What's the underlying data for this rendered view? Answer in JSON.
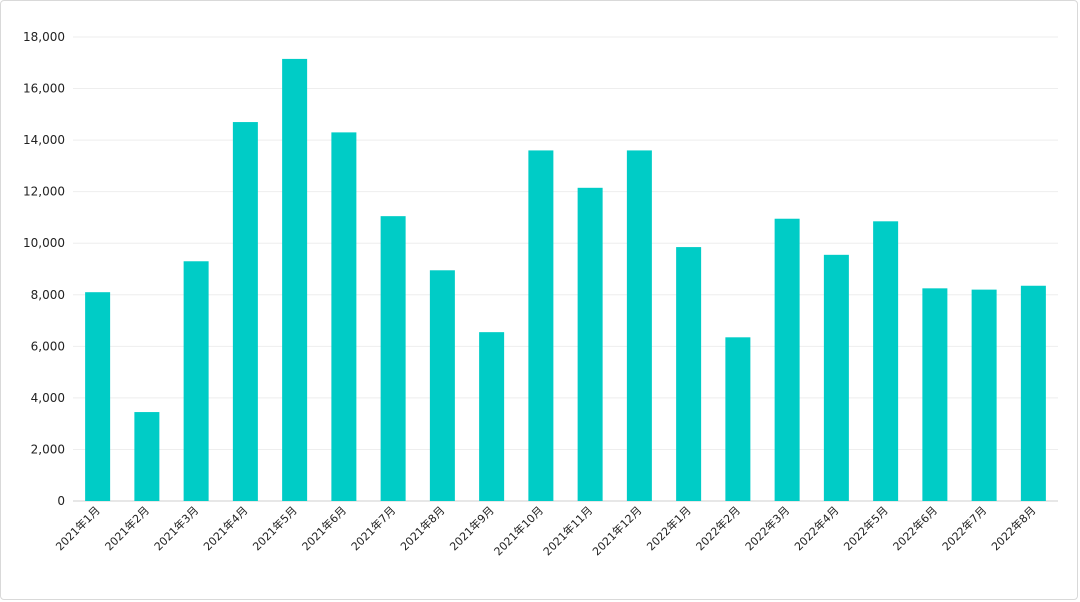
{
  "chart_data": {
    "type": "bar",
    "title": "",
    "xlabel": "",
    "ylabel": "",
    "ylim": [
      0,
      18000
    ],
    "yticks": [
      0,
      2000,
      4000,
      6000,
      8000,
      10000,
      12000,
      14000,
      16000,
      18000
    ],
    "ytick_labels": [
      "0",
      "2,000",
      "4,000",
      "6,000",
      "8,000",
      "10,000",
      "12,000",
      "14,000",
      "16,000",
      "18,000"
    ],
    "grid": true,
    "bar_color": "#00CCC6",
    "categories": [
      "2021年1月",
      "2021年2月",
      "2021年3月",
      "2021年4月",
      "2021年5月",
      "2021年6月",
      "2021年7月",
      "2021年8月",
      "2021年9月",
      "2021年10月",
      "2021年11月",
      "2021年12月",
      "2022年1月",
      "2022年2月",
      "2022年3月",
      "2022年4月",
      "2022年5月",
      "2022年6月",
      "2022年7月",
      "2022年8月"
    ],
    "values": [
      8100,
      3450,
      9300,
      14700,
      17150,
      14300,
      11050,
      8950,
      6550,
      13600,
      12150,
      13600,
      9850,
      6350,
      10950,
      9550,
      10850,
      8250,
      8200,
      8350
    ]
  }
}
